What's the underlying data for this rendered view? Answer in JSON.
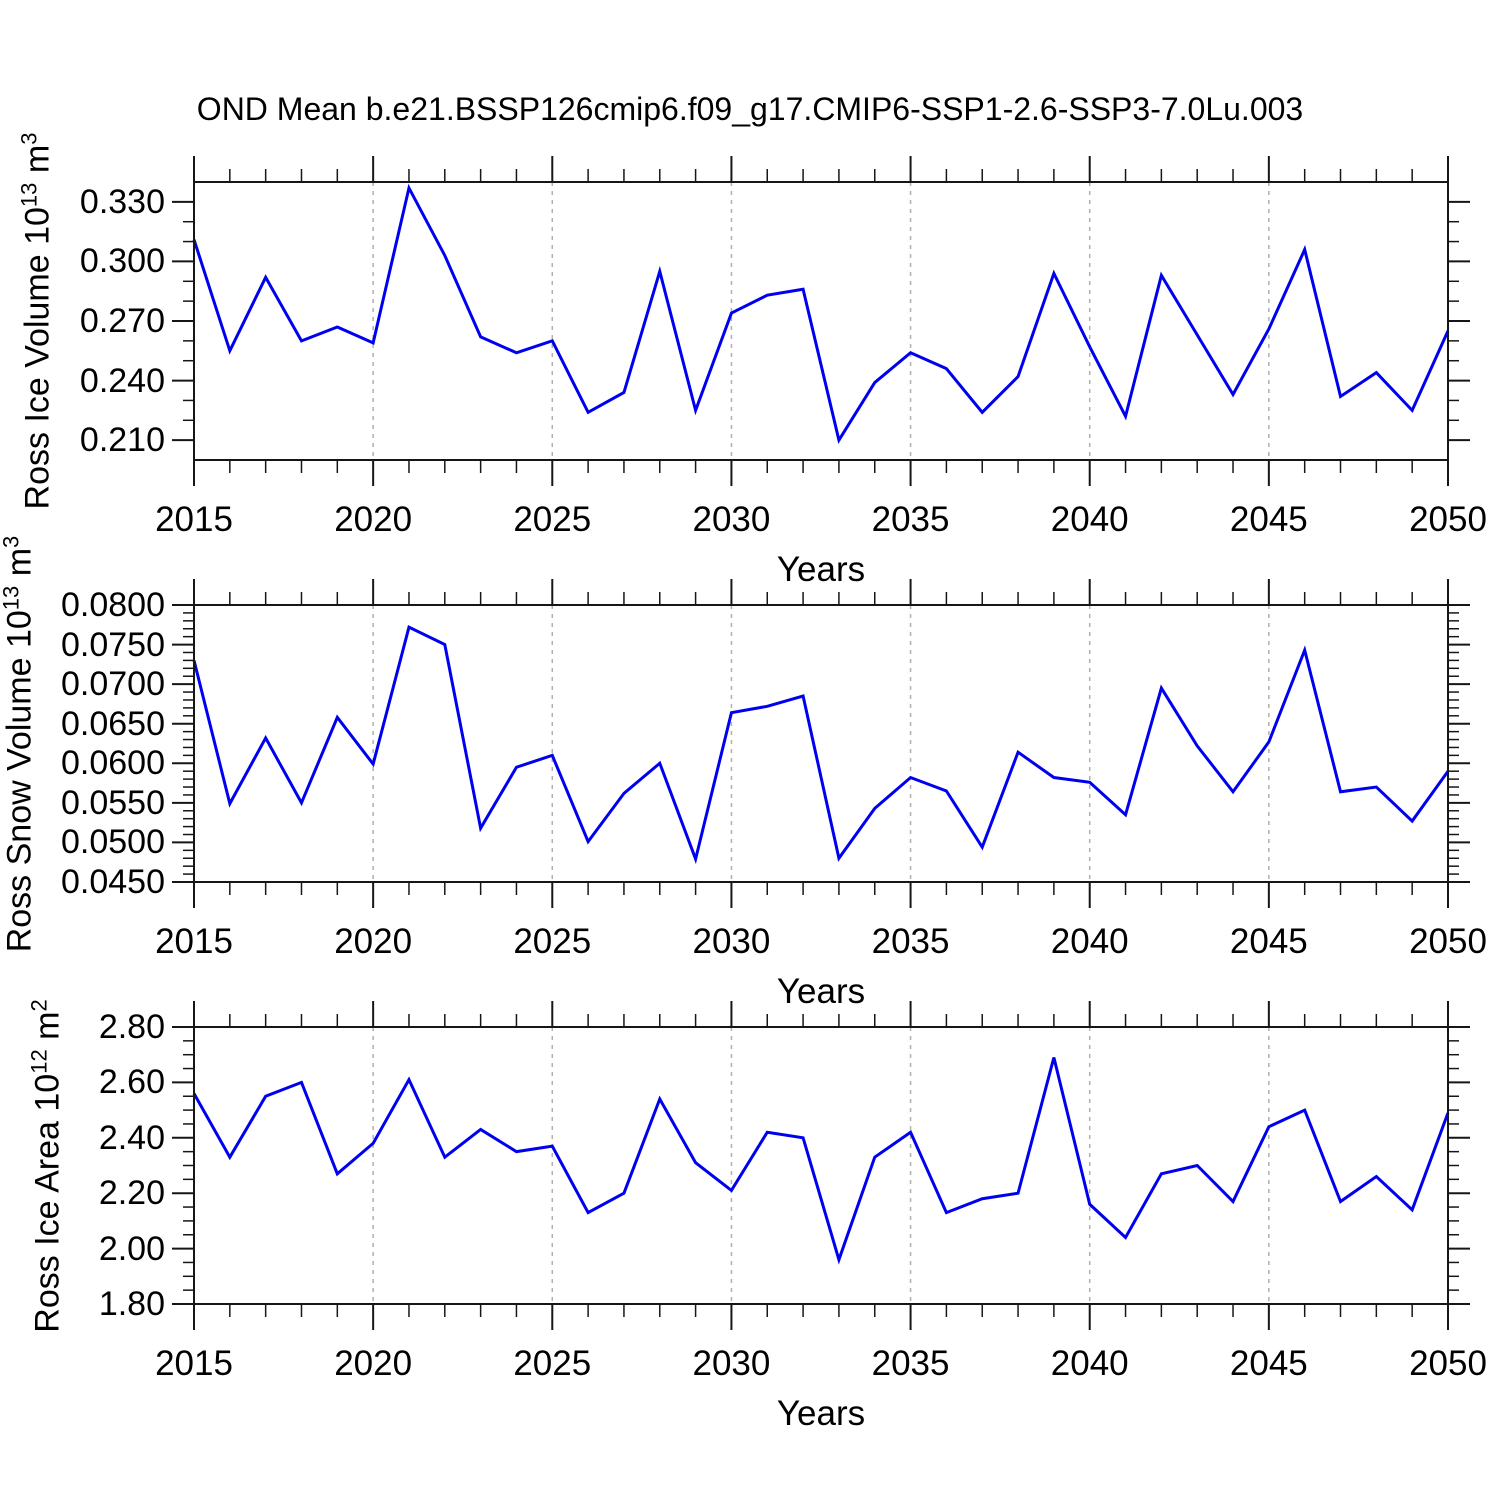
{
  "title": "OND Mean b.e21.BSSP126cmip6.f09_g17.CMIP6-SSP1-2.6-SSP3-7.0Lu.003",
  "colors": {
    "line": "#0000f0",
    "frame": "#161616",
    "dashed_grid": "#b0b0b0",
    "text": "#000000"
  },
  "chart_data": {
    "type": "line",
    "x_years": [
      2015,
      2016,
      2017,
      2018,
      2019,
      2020,
      2021,
      2022,
      2023,
      2024,
      2025,
      2026,
      2027,
      2028,
      2029,
      2030,
      2031,
      2032,
      2033,
      2034,
      2035,
      2036,
      2037,
      2038,
      2039,
      2040,
      2041,
      2042,
      2043,
      2044,
      2045,
      2046,
      2047,
      2048,
      2049,
      2050
    ],
    "xlim": [
      2015,
      2050
    ],
    "x_major_ticks": [
      2015,
      2020,
      2025,
      2030,
      2035,
      2040,
      2045,
      2050
    ],
    "xtick_labels": [
      "2015",
      "2020",
      "2025",
      "2030",
      "2035",
      "2040",
      "2045",
      "2050"
    ],
    "x_gridlines": [
      2020,
      2025,
      2030,
      2035,
      2040,
      2045
    ],
    "grid_style": "dashed-vertical-only",
    "legend": "none",
    "panels": [
      {
        "name": "ross-ice-volume",
        "ylabel": {
          "text": "Ross Ice Volume 10",
          "sup1": "13",
          "mid": " m",
          "sup2": "3"
        },
        "xlabel": "Years",
        "ylim": [
          0.2,
          0.34
        ],
        "yticks": [
          0.21,
          0.24,
          0.27,
          0.3,
          0.33
        ],
        "ytick_labels": [
          "0.210",
          "0.240",
          "0.270",
          "0.300",
          "0.330"
        ],
        "y_minor_step": 0.01,
        "values": [
          0.311,
          0.255,
          0.292,
          0.26,
          0.267,
          0.259,
          0.337,
          0.303,
          0.262,
          0.254,
          0.26,
          0.224,
          0.234,
          0.295,
          0.225,
          0.274,
          0.283,
          0.286,
          0.21,
          0.239,
          0.254,
          0.246,
          0.224,
          0.242,
          0.294,
          0.257,
          0.222,
          0.293,
          0.263,
          0.233,
          0.266,
          0.306,
          0.232,
          0.244,
          0.225,
          0.265
        ]
      },
      {
        "name": "ross-snow-volume",
        "ylabel": {
          "text": "Ross Snow Volume 10",
          "sup1": "13",
          "mid": " m",
          "sup2": "3"
        },
        "xlabel": "Years",
        "ylim": [
          0.045,
          0.08
        ],
        "yticks": [
          0.045,
          0.05,
          0.055,
          0.06,
          0.065,
          0.07,
          0.075,
          0.08
        ],
        "ytick_labels": [
          "0.0450",
          "0.0500",
          "0.0550",
          "0.0600",
          "0.0650",
          "0.0700",
          "0.0750",
          "0.0800"
        ],
        "y_minor_step": 0.001,
        "values": [
          0.073,
          0.0549,
          0.0632,
          0.055,
          0.0658,
          0.0599,
          0.0772,
          0.075,
          0.0518,
          0.0595,
          0.061,
          0.0501,
          0.0562,
          0.06,
          0.0479,
          0.0664,
          0.0672,
          0.0685,
          0.048,
          0.0543,
          0.0582,
          0.0565,
          0.0494,
          0.0614,
          0.0582,
          0.0576,
          0.0535,
          0.0695,
          0.0622,
          0.0564,
          0.0627,
          0.0743,
          0.0564,
          0.057,
          0.0527,
          0.059
        ]
      },
      {
        "name": "ross-ice-area",
        "ylabel": {
          "text": "Ross Ice Area 10",
          "sup1": "12",
          "mid": " m",
          "sup2": "2"
        },
        "xlabel": "Years",
        "ylim": [
          1.8,
          2.8
        ],
        "yticks": [
          1.8,
          2.0,
          2.2,
          2.4,
          2.6,
          2.8
        ],
        "ytick_labels": [
          "1.80",
          "2.00",
          "2.20",
          "2.40",
          "2.60",
          "2.80"
        ],
        "y_minor_step": 0.05,
        "values": [
          2.56,
          2.33,
          2.55,
          2.6,
          2.27,
          2.38,
          2.61,
          2.33,
          2.43,
          2.35,
          2.37,
          2.13,
          2.2,
          2.54,
          2.31,
          2.21,
          2.42,
          2.4,
          1.96,
          2.33,
          2.42,
          2.13,
          2.18,
          2.2,
          2.69,
          2.16,
          2.04,
          2.27,
          2.3,
          2.17,
          2.44,
          2.5,
          2.17,
          2.26,
          2.14,
          2.49
        ]
      }
    ]
  }
}
